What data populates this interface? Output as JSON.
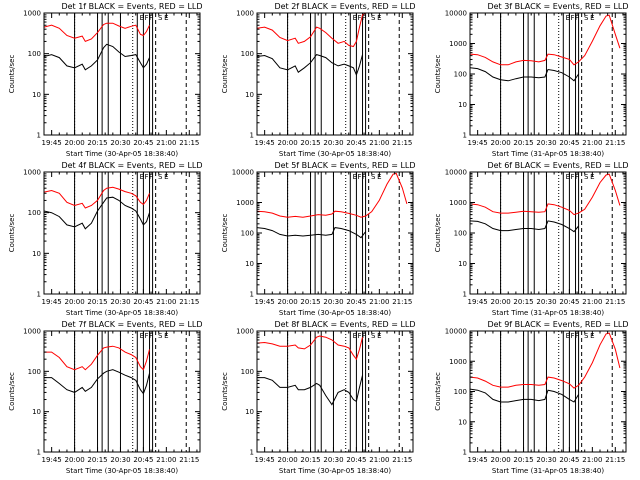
{
  "colors": {
    "events": "#000000",
    "lld": "#ff0000",
    "background": "#ffffff"
  },
  "common": {
    "xlabel_prefix": "Start Time",
    "ylabel": "Counts/sec",
    "xticks": [
      "19:45",
      "20:00",
      "20:15",
      "20:30",
      "20:45",
      "21:00",
      "21:15"
    ],
    "xtick_times_min": [
      0,
      15,
      30,
      45,
      60,
      75,
      90
    ],
    "xlim_min": [
      -5,
      97
    ],
    "overlay_labels": [
      "E",
      "F",
      "F",
      "S",
      "E"
    ]
  },
  "chart_data": [
    {
      "type": "line",
      "id": "det1f",
      "title": "Det 1f BLACK = Events, RED = LLD",
      "xlabel": "Start Time (30-Apr-05 18:38:40)",
      "ylabel": "Counts/sec",
      "yscale": "log",
      "yticks": [
        "1",
        "10",
        "100",
        "1000"
      ],
      "ylim": [
        1,
        1000
      ],
      "series": [
        {
          "name": "LLD",
          "color": "red",
          "x": [
            -5,
            0,
            5,
            10,
            15,
            20,
            22,
            26,
            30,
            34,
            36,
            40,
            44,
            48,
            52,
            55,
            58,
            60,
            62,
            64
          ],
          "y": [
            450,
            500,
            420,
            280,
            240,
            270,
            200,
            230,
            330,
            520,
            560,
            560,
            480,
            420,
            470,
            500,
            300,
            280,
            350,
            500
          ]
        },
        {
          "name": "Events",
          "color": "black",
          "x": [
            -5,
            0,
            5,
            10,
            15,
            20,
            22,
            26,
            30,
            34,
            36,
            40,
            44,
            48,
            52,
            55,
            58,
            60,
            62,
            64
          ],
          "y": [
            85,
            95,
            80,
            50,
            45,
            55,
            40,
            50,
            70,
            140,
            170,
            150,
            110,
            85,
            90,
            95,
            60,
            45,
            55,
            80
          ]
        }
      ]
    },
    {
      "type": "line",
      "id": "det2f",
      "title": "Det 2f BLACK = Events, RED = LLD",
      "xlabel": "Start Time (30-Apr-05 18:38:40)",
      "ylabel": "Counts/sec",
      "yscale": "log",
      "yticks": [
        "1",
        "10",
        "100",
        "1000"
      ],
      "ylim": [
        1,
        1000
      ],
      "series": [
        {
          "name": "LLD",
          "color": "red",
          "x": [
            -5,
            0,
            5,
            10,
            15,
            20,
            22,
            26,
            30,
            34,
            36,
            40,
            44,
            48,
            52,
            55,
            58,
            60,
            62,
            64,
            66,
            70
          ],
          "y": [
            420,
            450,
            380,
            250,
            210,
            240,
            180,
            200,
            260,
            450,
            420,
            330,
            240,
            180,
            200,
            160,
            150,
            200,
            450,
            900,
            1000,
            1000
          ]
        },
        {
          "name": "Events",
          "color": "black",
          "x": [
            -5,
            0,
            5,
            10,
            15,
            20,
            22,
            26,
            30,
            34,
            36,
            40,
            44,
            48,
            52,
            55,
            58,
            60,
            62,
            64
          ],
          "y": [
            85,
            90,
            75,
            45,
            40,
            50,
            35,
            45,
            60,
            95,
            90,
            80,
            60,
            50,
            55,
            50,
            45,
            30,
            50,
            95
          ]
        }
      ]
    },
    {
      "type": "line",
      "id": "det3f",
      "title": "Det 3f BLACK = Events, RED = LLD",
      "xlabel": "Start Time (31-Apr-05 18:38:40)",
      "ylabel": "Counts/sec",
      "yscale": "log",
      "yticks": [
        "1",
        "10",
        "100",
        "1000",
        "10000"
      ],
      "ylim": [
        1,
        10000
      ],
      "series": [
        {
          "name": "LLD",
          "color": "red",
          "x": [
            -5,
            0,
            5,
            10,
            15,
            20,
            25,
            30,
            35,
            40,
            44,
            46,
            50,
            55,
            60,
            63,
            66,
            70,
            75,
            80,
            84,
            86,
            90,
            93
          ],
          "y": [
            450,
            430,
            350,
            250,
            200,
            200,
            250,
            280,
            270,
            250,
            280,
            450,
            430,
            360,
            300,
            200,
            250,
            400,
            1200,
            3800,
            8000,
            8500,
            2000,
            700
          ]
        },
        {
          "name": "Events",
          "color": "black",
          "x": [
            -5,
            0,
            5,
            10,
            15,
            20,
            25,
            30,
            35,
            40,
            44,
            46,
            50,
            55,
            60,
            63,
            66
          ],
          "y": [
            160,
            150,
            120,
            80,
            65,
            60,
            70,
            80,
            80,
            75,
            80,
            140,
            130,
            110,
            80,
            60,
            100
          ]
        }
      ]
    },
    {
      "type": "line",
      "id": "det4f",
      "title": "Det 4f BLACK = Events, RED = LLD",
      "xlabel": "Start Time (30-Apr-05 18:38:40)",
      "ylabel": "Counts/sec",
      "yscale": "log",
      "yticks": [
        "1",
        "10",
        "100",
        "1000"
      ],
      "ylim": [
        1,
        1000
      ],
      "series": [
        {
          "name": "LLD",
          "color": "red",
          "x": [
            -5,
            0,
            5,
            10,
            15,
            20,
            22,
            26,
            30,
            34,
            36,
            40,
            44,
            48,
            52,
            55,
            58,
            60,
            62,
            64
          ],
          "y": [
            320,
            350,
            300,
            180,
            150,
            170,
            130,
            150,
            200,
            350,
            400,
            420,
            380,
            330,
            300,
            260,
            180,
            160,
            200,
            300
          ]
        },
        {
          "name": "Events",
          "color": "black",
          "x": [
            -5,
            0,
            5,
            10,
            15,
            20,
            22,
            26,
            30,
            34,
            36,
            40,
            44,
            48,
            52,
            55,
            58,
            60,
            62,
            64
          ],
          "y": [
            110,
            100,
            80,
            50,
            45,
            55,
            40,
            55,
            110,
            180,
            230,
            240,
            200,
            150,
            130,
            110,
            70,
            50,
            60,
            100
          ]
        }
      ]
    },
    {
      "type": "line",
      "id": "det5f",
      "title": "Det 5f BLACK = Events, RED = LLD",
      "xlabel": "Start Time (30-Apr-05 18:38:40)",
      "ylabel": "Counts/sec",
      "yscale": "log",
      "yticks": [
        "1",
        "10",
        "100",
        "1000",
        "10000"
      ],
      "ylim": [
        1,
        10000
      ],
      "series": [
        {
          "name": "LLD",
          "color": "red",
          "x": [
            -5,
            0,
            5,
            10,
            15,
            20,
            25,
            30,
            35,
            40,
            44,
            46,
            50,
            55,
            60,
            63,
            66,
            70,
            75,
            80,
            84,
            86,
            90,
            93
          ],
          "y": [
            520,
            500,
            450,
            360,
            330,
            350,
            330,
            360,
            400,
            380,
            420,
            520,
            500,
            440,
            380,
            330,
            360,
            500,
            1200,
            4000,
            8500,
            9000,
            3000,
            900
          ]
        },
        {
          "name": "Events",
          "color": "black",
          "x": [
            -5,
            0,
            5,
            10,
            15,
            20,
            25,
            30,
            35,
            40,
            44,
            46,
            50,
            55,
            60,
            63,
            66
          ],
          "y": [
            150,
            140,
            120,
            90,
            80,
            85,
            80,
            85,
            90,
            85,
            90,
            150,
            140,
            120,
            90,
            70,
            110
          ]
        }
      ]
    },
    {
      "type": "line",
      "id": "det6f",
      "title": "Det 6f BLACK = Events, RED = LLD",
      "xlabel": "Start Time (31-Apr-05 18:38:40)",
      "ylabel": "Counts/sec",
      "yscale": "log",
      "yticks": [
        "1",
        "10",
        "100",
        "1000",
        "10000"
      ],
      "ylim": [
        1,
        10000
      ],
      "series": [
        {
          "name": "LLD",
          "color": "red",
          "x": [
            -5,
            0,
            5,
            10,
            15,
            20,
            25,
            30,
            35,
            40,
            44,
            46,
            50,
            55,
            60,
            63,
            66,
            70,
            75,
            80,
            84,
            86,
            90,
            93
          ],
          "y": [
            900,
            850,
            700,
            500,
            450,
            450,
            480,
            520,
            500,
            480,
            500,
            900,
            850,
            700,
            550,
            400,
            450,
            600,
            1500,
            4500,
            8000,
            8500,
            2500,
            800
          ]
        },
        {
          "name": "Events",
          "color": "black",
          "x": [
            -5,
            0,
            5,
            10,
            15,
            20,
            25,
            30,
            35,
            40,
            44,
            46,
            50,
            55,
            60,
            63,
            66
          ],
          "y": [
            250,
            240,
            200,
            140,
            120,
            120,
            130,
            140,
            140,
            130,
            140,
            250,
            230,
            190,
            140,
            110,
            170
          ]
        }
      ]
    },
    {
      "type": "line",
      "id": "det7f",
      "title": "Det 7f BLACK = Events, RED = LLD",
      "xlabel": "Start Time (30-Apr-05 18:38:40)",
      "ylabel": "Counts/sec",
      "yscale": "log",
      "yticks": [
        "1",
        "10",
        "100",
        "1000"
      ],
      "ylim": [
        1,
        1000
      ],
      "series": [
        {
          "name": "LLD",
          "color": "red",
          "x": [
            -5,
            0,
            5,
            10,
            15,
            20,
            22,
            26,
            30,
            34,
            36,
            40,
            44,
            48,
            52,
            55,
            58,
            60,
            62,
            64
          ],
          "y": [
            300,
            300,
            220,
            130,
            110,
            130,
            110,
            150,
            250,
            380,
            400,
            420,
            380,
            300,
            260,
            220,
            130,
            110,
            180,
            350
          ]
        },
        {
          "name": "Events",
          "color": "black",
          "x": [
            -5,
            0,
            5,
            10,
            15,
            20,
            22,
            26,
            30,
            34,
            36,
            40,
            44,
            48,
            52,
            55,
            58,
            60,
            62,
            64
          ],
          "y": [
            70,
            70,
            50,
            35,
            30,
            40,
            32,
            40,
            65,
            90,
            100,
            110,
            95,
            80,
            70,
            60,
            35,
            28,
            45,
            90
          ]
        }
      ]
    },
    {
      "type": "line",
      "id": "det8f",
      "title": "Det 8f BLACK = Events, RED = LLD",
      "xlabel": "Start Time (30-Apr-05 18:38:40)",
      "ylabel": "Counts/sec",
      "yscale": "log",
      "yticks": [
        "1",
        "10",
        "100",
        "1000"
      ],
      "ylim": [
        1,
        1000
      ],
      "series": [
        {
          "name": "LLD",
          "color": "red",
          "x": [
            -5,
            0,
            5,
            10,
            15,
            20,
            22,
            26,
            30,
            34,
            36,
            40,
            44,
            48,
            52,
            55,
            58,
            60,
            62,
            64
          ],
          "y": [
            500,
            520,
            480,
            420,
            420,
            450,
            380,
            360,
            450,
            700,
            750,
            700,
            600,
            450,
            420,
            380,
            250,
            200,
            350,
            700
          ]
        },
        {
          "name": "Events",
          "color": "black",
          "x": [
            -5,
            0,
            5,
            10,
            15,
            20,
            22,
            26,
            30,
            34,
            36,
            40,
            44,
            48,
            52,
            55,
            58,
            60,
            62,
            64
          ],
          "y": [
            70,
            70,
            60,
            40,
            40,
            45,
            35,
            35,
            40,
            50,
            45,
            25,
            15,
            30,
            35,
            30,
            20,
            18,
            40,
            80
          ]
        }
      ]
    },
    {
      "type": "line",
      "id": "det9f",
      "title": "Det 9f BLACK = Events, RED = LLD",
      "xlabel": "Start Time (31-Apr-05 18:38:40)",
      "ylabel": "Counts/sec",
      "yscale": "log",
      "yticks": [
        "1",
        "10",
        "100",
        "1000",
        "10000"
      ],
      "ylim": [
        1,
        10000
      ],
      "series": [
        {
          "name": "LLD",
          "color": "red",
          "x": [
            -5,
            0,
            5,
            10,
            15,
            20,
            25,
            30,
            35,
            40,
            44,
            46,
            50,
            55,
            60,
            63,
            66,
            70,
            75,
            80,
            84,
            86,
            90,
            93
          ],
          "y": [
            300,
            280,
            220,
            160,
            140,
            140,
            160,
            170,
            170,
            160,
            170,
            300,
            280,
            230,
            180,
            130,
            160,
            300,
            900,
            3500,
            8000,
            8500,
            2500,
            600
          ]
        },
        {
          "name": "Events",
          "color": "black",
          "x": [
            -5,
            0,
            5,
            10,
            15,
            20,
            25,
            30,
            35,
            40,
            44,
            46,
            50,
            55,
            60,
            63,
            66
          ],
          "y": [
            120,
            110,
            90,
            55,
            45,
            45,
            50,
            55,
            55,
            50,
            55,
            110,
            100,
            80,
            55,
            45,
            80
          ]
        }
      ]
    }
  ]
}
